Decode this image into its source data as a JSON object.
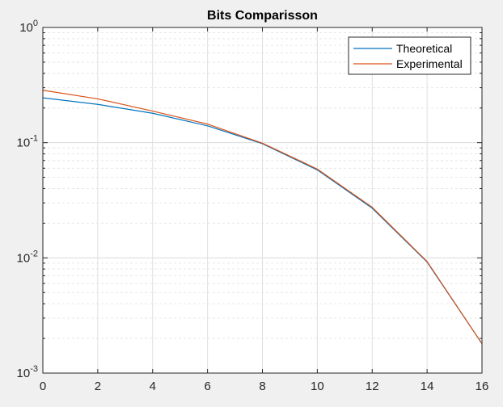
{
  "chart_data": {
    "type": "line",
    "title": "Bits Comparisson",
    "xlabel": "",
    "ylabel": "",
    "x": [
      0,
      2,
      4,
      6,
      8,
      10,
      12,
      14,
      16
    ],
    "xlim": [
      0,
      16
    ],
    "ylim": [
      0.001,
      1
    ],
    "yscale": "log",
    "grid": true,
    "minor_grid": true,
    "legend_position": "top-right",
    "x_ticks": [
      "0",
      "2",
      "4",
      "6",
      "8",
      "10",
      "12",
      "14",
      "16"
    ],
    "y_ticks": [
      {
        "base": "10",
        "exp": "0"
      },
      {
        "base": "10",
        "exp": "-1"
      },
      {
        "base": "10",
        "exp": "-2"
      },
      {
        "base": "10",
        "exp": "-3"
      }
    ],
    "series": [
      {
        "name": "Theoretical",
        "color": "#0072bd",
        "values": [
          0.245,
          0.215,
          0.18,
          0.14,
          0.098,
          0.058,
          0.027,
          0.0092,
          0.0018
        ]
      },
      {
        "name": "Experimental",
        "color": "#d95319",
        "values": [
          0.285,
          0.24,
          0.188,
          0.145,
          0.099,
          0.059,
          0.0275,
          0.0093,
          0.0018
        ]
      }
    ]
  }
}
